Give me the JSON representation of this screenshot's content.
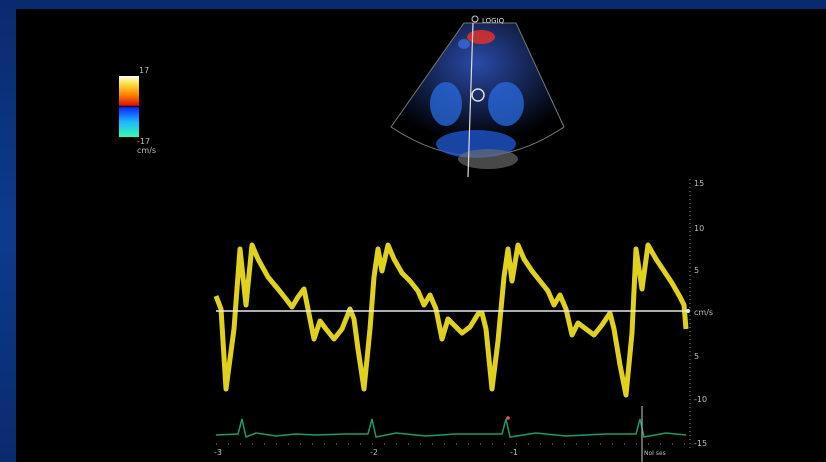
{
  "brand": "LOGIQ",
  "color_scale": {
    "top_value": "17",
    "bottom_value": "-17",
    "unit": "cm/s"
  },
  "velocity_axis": {
    "unit": "cm/s",
    "ticks": [
      "15",
      "10",
      "5",
      "cm/s",
      "5",
      "-10",
      "-15"
    ]
  },
  "time_axis": {
    "labels": [
      "-3",
      "-2",
      "-1"
    ],
    "marker_label": "NoI ses"
  },
  "colors": {
    "frame_blue": "#0d3b8c",
    "waveform": "#f2e321",
    "baseline": "#e8e8e8",
    "ecg": "#1e9a6a"
  }
}
